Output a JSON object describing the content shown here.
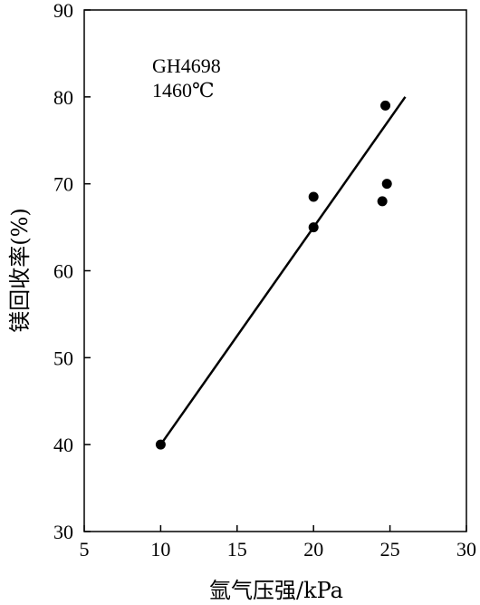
{
  "chart_data": {
    "type": "scatter",
    "title": "",
    "xlabel": "氩气压强/kPa",
    "ylabel": "镁回收率(%)",
    "xlim": [
      5,
      30
    ],
    "ylim": [
      30,
      90
    ],
    "xticks": [
      5,
      10,
      15,
      20,
      25,
      30
    ],
    "yticks": [
      30,
      40,
      50,
      60,
      70,
      80,
      90
    ],
    "annotations": [
      "GH4698",
      "1460℃"
    ],
    "series": [
      {
        "points": [
          {
            "x": 10,
            "y": 40
          },
          {
            "x": 20,
            "y": 65
          },
          {
            "x": 20,
            "y": 68.5
          },
          {
            "x": 24.5,
            "y": 68
          },
          {
            "x": 24.8,
            "y": 70
          },
          {
            "x": 24.7,
            "y": 79
          }
        ]
      }
    ],
    "fit_line": {
      "from": {
        "x": 10,
        "y": 40
      },
      "to": {
        "x": 26,
        "y": 80
      }
    },
    "grid": false,
    "legend": "none",
    "colors": {
      "marker": "#000000",
      "line": "#000000",
      "axis": "#000000"
    }
  }
}
